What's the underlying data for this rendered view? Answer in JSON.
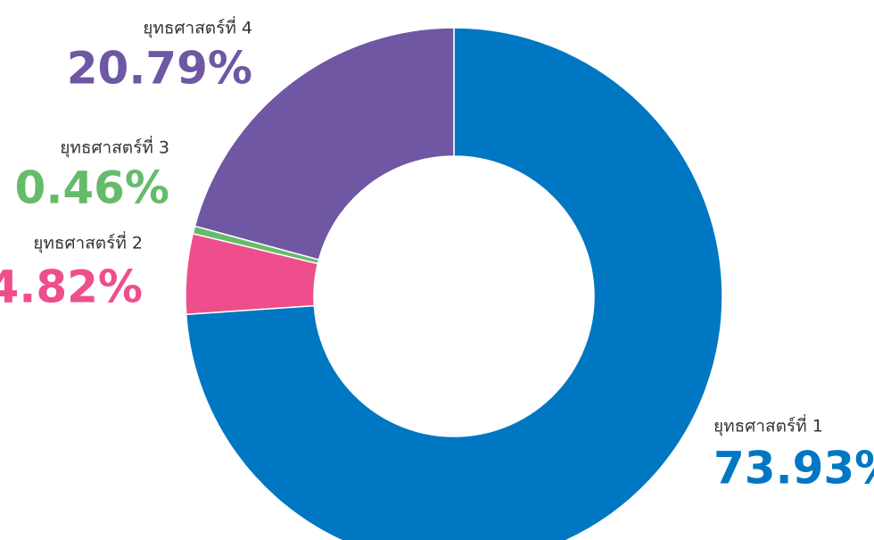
{
  "chart_data": {
    "type": "donut",
    "categories": [
      "ยุทธศาสตร์ที่ 1",
      "ยุทธศาสตร์ที่ 2",
      "ยุทธศาสตร์ที่ 3",
      "ยุทธศาสตร์ที่ 4"
    ],
    "values": [
      73.93,
      4.82,
      0.46,
      20.79
    ],
    "value_labels": [
      "73.93%",
      "4.82%",
      "0.46%",
      "20.79%"
    ],
    "colors": [
      "#0077c2",
      "#ee4e8b",
      "#66bb6a",
      "#6f57a3"
    ]
  }
}
